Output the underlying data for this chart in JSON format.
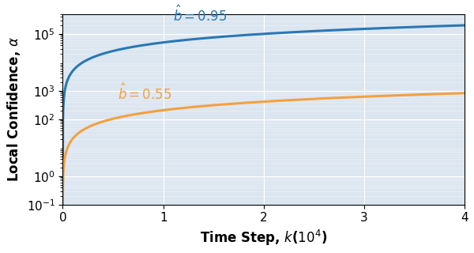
{
  "b_values": [
    0.95,
    0.55
  ],
  "colors": [
    "#2878b5",
    "#f4a040"
  ],
  "k_max": 40000,
  "k_steps": 5000,
  "alpha_0": 0.1,
  "C_scale": 0.0055,
  "power": 1.0,
  "ylim_low": 0.1,
  "ylim_high": 500000,
  "xlim": [
    0,
    40000
  ],
  "xticks": [
    0,
    10000,
    20000,
    30000,
    40000
  ],
  "xticklabels": [
    "0",
    "1",
    "2",
    "3",
    "4"
  ],
  "yticks": [
    0.1,
    1,
    100,
    1000,
    100000
  ],
  "background_color": "#dce6f0",
  "line_width": 2.2,
  "label_fontsize": 12,
  "tick_fontsize": 11,
  "annotation_fontsize": 12,
  "ann_blue_x": 11000,
  "ann_blue_y": 270000,
  "ann_orange_x": 5500,
  "ann_orange_y": 500
}
